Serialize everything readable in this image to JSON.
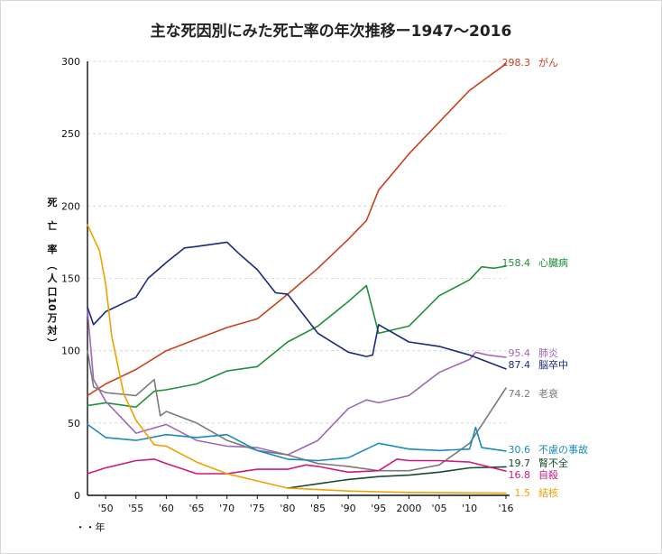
{
  "chart_data": {
    "type": "line",
    "title": "主な死因別にみた死亡率の年次推移ー1947〜2016",
    "ylabel_chars": [
      "死",
      "亡",
      "率",
      "（",
      "人",
      "口",
      "10",
      "万",
      "対",
      "）"
    ],
    "xlabel": "・・年",
    "ylim": [
      0,
      300
    ],
    "y_ticks": [
      0,
      50,
      100,
      150,
      200,
      250,
      300
    ],
    "x_range": [
      1947,
      2016
    ],
    "x_ticks": [
      {
        "x": 1950,
        "label": "'50"
      },
      {
        "x": 1955,
        "label": "'55"
      },
      {
        "x": 1960,
        "label": "'60"
      },
      {
        "x": 1965,
        "label": "'65"
      },
      {
        "x": 1970,
        "label": "'70"
      },
      {
        "x": 1975,
        "label": "'75"
      },
      {
        "x": 1980,
        "label": "'80"
      },
      {
        "x": 1985,
        "label": "'85"
      },
      {
        "x": 1990,
        "label": "'90"
      },
      {
        "x": 1995,
        "label": "'95"
      },
      {
        "x": 2000,
        "label": "2000"
      },
      {
        "x": 2005,
        "label": "'05"
      },
      {
        "x": 2010,
        "label": "'10"
      },
      {
        "x": 2016,
        "label": "'16"
      }
    ],
    "grid": "horizontal-dashed",
    "legend": "right-end-labels",
    "series": [
      {
        "name": "がん",
        "end_value": "298.3",
        "color": "#c8401e",
        "points": [
          [
            1947,
            69
          ],
          [
            1950,
            77
          ],
          [
            1955,
            87
          ],
          [
            1960,
            100
          ],
          [
            1965,
            108
          ],
          [
            1970,
            116
          ],
          [
            1975,
            122
          ],
          [
            1980,
            139
          ],
          [
            1985,
            157
          ],
          [
            1990,
            177
          ],
          [
            1993,
            190
          ],
          [
            1995,
            211
          ],
          [
            2000,
            236
          ],
          [
            2005,
            258
          ],
          [
            2010,
            280
          ],
          [
            2016,
            298.3
          ]
        ]
      },
      {
        "name": "心臓病",
        "end_value": "158.4",
        "color": "#1f8f3a",
        "points": [
          [
            1947,
            62
          ],
          [
            1950,
            64
          ],
          [
            1955,
            61
          ],
          [
            1958,
            72
          ],
          [
            1960,
            73
          ],
          [
            1965,
            77
          ],
          [
            1970,
            86
          ],
          [
            1975,
            89
          ],
          [
            1980,
            106
          ],
          [
            1985,
            117
          ],
          [
            1990,
            134
          ],
          [
            1993,
            145
          ],
          [
            1995,
            112
          ],
          [
            2000,
            117
          ],
          [
            2005,
            138
          ],
          [
            2010,
            149
          ],
          [
            2012,
            158
          ],
          [
            2014,
            157
          ],
          [
            2016,
            158.4
          ]
        ]
      },
      {
        "name": "肺炎",
        "end_value": "95.4",
        "color": "#a066b8",
        "points": [
          [
            1947,
            128
          ],
          [
            1948,
            80
          ],
          [
            1950,
            65
          ],
          [
            1955,
            43
          ],
          [
            1960,
            49
          ],
          [
            1965,
            38
          ],
          [
            1970,
            34
          ],
          [
            1975,
            33
          ],
          [
            1980,
            28
          ],
          [
            1985,
            38
          ],
          [
            1990,
            60
          ],
          [
            1993,
            66
          ],
          [
            1995,
            64
          ],
          [
            2000,
            69
          ],
          [
            2005,
            85
          ],
          [
            2010,
            94
          ],
          [
            2011,
            99
          ],
          [
            2013,
            97
          ],
          [
            2016,
            95.4
          ]
        ]
      },
      {
        "name": "脳卒中",
        "end_value": "87.4",
        "color": "#1a2a7a",
        "points": [
          [
            1947,
            130
          ],
          [
            1948,
            118
          ],
          [
            1950,
            127
          ],
          [
            1955,
            137
          ],
          [
            1957,
            150
          ],
          [
            1960,
            161
          ],
          [
            1963,
            171
          ],
          [
            1965,
            172
          ],
          [
            1970,
            175
          ],
          [
            1972,
            167
          ],
          [
            1975,
            156
          ],
          [
            1978,
            140
          ],
          [
            1980,
            139
          ],
          [
            1985,
            112
          ],
          [
            1990,
            99
          ],
          [
            1993,
            96
          ],
          [
            1994,
            97
          ],
          [
            1995,
            118
          ],
          [
            2000,
            106
          ],
          [
            2005,
            103
          ],
          [
            2010,
            97
          ],
          [
            2016,
            87.4
          ]
        ]
      },
      {
        "name": "老衰",
        "end_value": "74.2",
        "color": "#7a7a7a",
        "points": [
          [
            1947,
            100
          ],
          [
            1948,
            75
          ],
          [
            1950,
            71
          ],
          [
            1955,
            69
          ],
          [
            1958,
            80
          ],
          [
            1959,
            55
          ],
          [
            1960,
            58
          ],
          [
            1965,
            50
          ],
          [
            1970,
            38
          ],
          [
            1975,
            31
          ],
          [
            1980,
            28
          ],
          [
            1985,
            22
          ],
          [
            1990,
            20
          ],
          [
            1995,
            17
          ],
          [
            2000,
            17
          ],
          [
            2005,
            21
          ],
          [
            2010,
            36
          ],
          [
            2013,
            55
          ],
          [
            2016,
            74.2
          ]
        ]
      },
      {
        "name": "不慮の事故",
        "end_value": "30.6",
        "color": "#1a8bc0",
        "points": [
          [
            1947,
            49
          ],
          [
            1950,
            40
          ],
          [
            1955,
            38
          ],
          [
            1960,
            42
          ],
          [
            1965,
            40
          ],
          [
            1970,
            42
          ],
          [
            1975,
            31
          ],
          [
            1980,
            25
          ],
          [
            1985,
            24
          ],
          [
            1990,
            26
          ],
          [
            1995,
            36
          ],
          [
            2000,
            32
          ],
          [
            2005,
            31
          ],
          [
            2010,
            32
          ],
          [
            2011,
            47
          ],
          [
            2012,
            33
          ],
          [
            2016,
            30.6
          ]
        ]
      },
      {
        "name": "腎不全",
        "end_value": "19.7",
        "color": "#164d2a",
        "points": [
          [
            1980,
            5
          ],
          [
            1985,
            8
          ],
          [
            1990,
            11
          ],
          [
            1995,
            13
          ],
          [
            2000,
            14
          ],
          [
            2005,
            16
          ],
          [
            2010,
            19
          ],
          [
            2016,
            19.7
          ]
        ]
      },
      {
        "name": "自殺",
        "end_value": "16.8",
        "color": "#cc1a7a",
        "points": [
          [
            1947,
            15
          ],
          [
            1950,
            19
          ],
          [
            1955,
            24
          ],
          [
            1958,
            25
          ],
          [
            1960,
            22
          ],
          [
            1965,
            15
          ],
          [
            1970,
            15
          ],
          [
            1975,
            18
          ],
          [
            1980,
            18
          ],
          [
            1983,
            21
          ],
          [
            1985,
            20
          ],
          [
            1990,
            16
          ],
          [
            1995,
            17
          ],
          [
            1998,
            25
          ],
          [
            2000,
            24
          ],
          [
            2005,
            24
          ],
          [
            2010,
            23
          ],
          [
            2016,
            16.8
          ]
        ]
      },
      {
        "name": "結核",
        "end_value": "1.5",
        "color": "#f0a000",
        "points": [
          [
            1947,
            187
          ],
          [
            1949,
            169
          ],
          [
            1950,
            146
          ],
          [
            1951,
            110
          ],
          [
            1953,
            70
          ],
          [
            1955,
            52
          ],
          [
            1958,
            35
          ],
          [
            1960,
            34
          ],
          [
            1965,
            23
          ],
          [
            1970,
            15
          ],
          [
            1975,
            10
          ],
          [
            1980,
            5
          ],
          [
            1985,
            4
          ],
          [
            1990,
            3
          ],
          [
            1995,
            2.5
          ],
          [
            2000,
            2
          ],
          [
            2005,
            1.8
          ],
          [
            2010,
            1.7
          ],
          [
            2016,
            1.5
          ]
        ]
      }
    ]
  }
}
